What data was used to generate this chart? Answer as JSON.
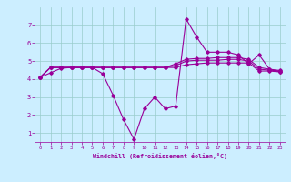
{
  "xlabel": "Windchill (Refroidissement éolien,°C)",
  "xlim": [
    -0.5,
    23.5
  ],
  "ylim": [
    0.5,
    8.0
  ],
  "xticks": [
    0,
    1,
    2,
    3,
    4,
    5,
    6,
    7,
    8,
    9,
    10,
    11,
    12,
    13,
    14,
    15,
    16,
    17,
    18,
    19,
    20,
    21,
    22,
    23
  ],
  "yticks": [
    1,
    2,
    3,
    4,
    5,
    6,
    7
  ],
  "background_color": "#cceeff",
  "grid_color": "#99cccc",
  "line_color": "#990099",
  "series": {
    "line_wavy": {
      "x": [
        0,
        1,
        2,
        3,
        4,
        5,
        6,
        7,
        8,
        9,
        10,
        11,
        12,
        13,
        14,
        15,
        16,
        17,
        18,
        19,
        20,
        21,
        22,
        23
      ],
      "y": [
        4.1,
        4.35,
        4.6,
        4.65,
        4.65,
        4.65,
        4.3,
        3.1,
        1.75,
        0.65,
        2.35,
        3.0,
        2.35,
        2.5,
        7.35,
        6.35,
        5.5,
        5.5,
        5.5,
        5.35,
        4.85,
        5.35,
        4.55,
        4.4
      ]
    },
    "line_flat1": {
      "x": [
        0,
        1,
        2,
        3,
        4,
        5,
        6,
        7,
        8,
        9,
        10,
        11,
        12,
        13,
        14,
        15,
        16,
        17,
        18,
        19,
        20,
        21,
        22,
        23
      ],
      "y": [
        4.1,
        4.65,
        4.65,
        4.65,
        4.65,
        4.65,
        4.65,
        4.65,
        4.65,
        4.65,
        4.65,
        4.65,
        4.65,
        4.65,
        4.8,
        4.85,
        4.9,
        4.9,
        4.9,
        4.9,
        4.9,
        4.45,
        4.45,
        4.4
      ]
    },
    "line_flat2": {
      "x": [
        0,
        1,
        2,
        3,
        4,
        5,
        6,
        7,
        8,
        9,
        10,
        11,
        12,
        13,
        14,
        15,
        16,
        17,
        18,
        19,
        20,
        21,
        22,
        23
      ],
      "y": [
        4.1,
        4.65,
        4.65,
        4.65,
        4.65,
        4.65,
        4.65,
        4.65,
        4.65,
        4.65,
        4.65,
        4.65,
        4.65,
        4.75,
        5.0,
        5.05,
        5.05,
        5.05,
        5.1,
        5.1,
        5.0,
        4.55,
        4.5,
        4.45
      ]
    },
    "line_flat3": {
      "x": [
        0,
        1,
        2,
        3,
        4,
        5,
        6,
        7,
        8,
        9,
        10,
        11,
        12,
        13,
        14,
        15,
        16,
        17,
        18,
        19,
        20,
        21,
        22,
        23
      ],
      "y": [
        4.1,
        4.65,
        4.65,
        4.65,
        4.65,
        4.65,
        4.65,
        4.65,
        4.65,
        4.65,
        4.65,
        4.65,
        4.65,
        4.85,
        5.1,
        5.15,
        5.15,
        5.2,
        5.2,
        5.2,
        5.1,
        4.65,
        4.55,
        4.48
      ]
    }
  }
}
